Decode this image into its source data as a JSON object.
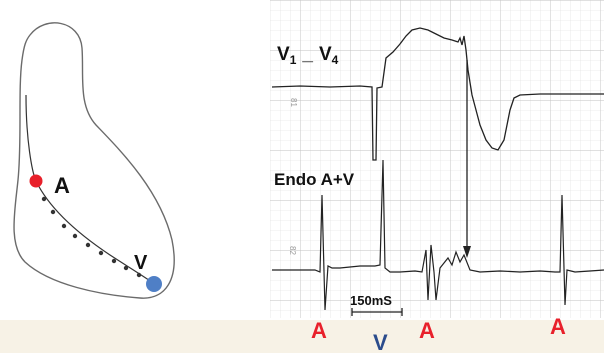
{
  "heart_diagram": {
    "label_a": "A",
    "label_v": "V",
    "dot_a_color": "#e8202a",
    "dot_v_color": "#4f7fc6",
    "catheter_color": "#333333"
  },
  "ecg_panel": {
    "lead_label_main": "V",
    "lead_sub_1": "1",
    "lead_dash": "_",
    "lead_label_v4": "V",
    "lead_sub_4": "4",
    "channel2_label": "Endo A+V",
    "scale_label": "150mS",
    "grid_mark_top": "81",
    "grid_mark_bottom": "82",
    "trace_color": "#222222",
    "grid_color": "#cfcfcf"
  },
  "bottom_labels": {
    "a1": "A",
    "v": "V",
    "a2": "A",
    "a3": "A",
    "a_color": "#e8202a",
    "v_color": "#2b4c8c"
  }
}
